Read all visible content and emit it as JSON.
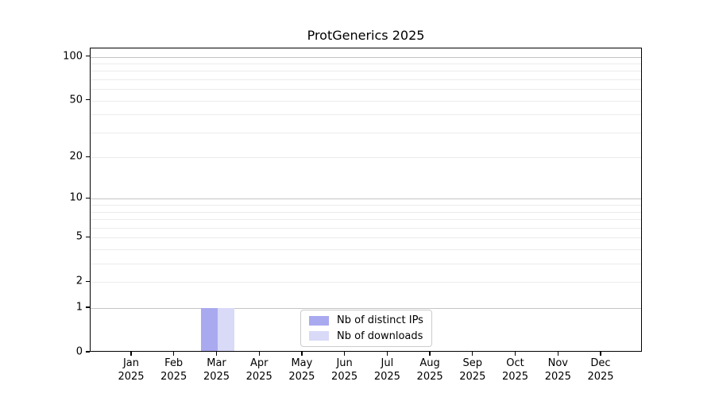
{
  "chart_data": {
    "type": "bar",
    "title": "ProtGenerics 2025",
    "categories": [
      "Jan 2025",
      "Feb 2025",
      "Mar 2025",
      "Apr 2025",
      "May 2025",
      "Jun 2025",
      "Jul 2025",
      "Aug 2025",
      "Sep 2025",
      "Oct 2025",
      "Nov 2025",
      "Dec 2025"
    ],
    "series": [
      {
        "name": "Nb of distinct IPs",
        "color": "#a9a9f0",
        "values": [
          0,
          0,
          1,
          0,
          0,
          0,
          0,
          0,
          0,
          0,
          0,
          0
        ]
      },
      {
        "name": "Nb of downloads",
        "color": "#d9d9f8",
        "values": [
          0,
          0,
          1,
          0,
          0,
          0,
          0,
          0,
          0,
          0,
          0,
          0
        ]
      }
    ],
    "xlabel": "",
    "ylabel": "",
    "yscale": "log1p",
    "ylim": [
      0,
      114
    ],
    "yticks": [
      0,
      1,
      2,
      5,
      10,
      20,
      50,
      100
    ],
    "ygrid_major": [
      1,
      10,
      100
    ],
    "ygrid_minor": [
      2,
      3,
      4,
      5,
      6,
      7,
      8,
      9,
      20,
      30,
      40,
      50,
      60,
      70,
      80,
      90
    ],
    "grid": true,
    "legend_position": "lower center inside",
    "colors": {
      "axis": "#000000",
      "grid_major": "#c4c4c4",
      "grid_minor": "#ebebeb",
      "legend_border": "#cccccc",
      "background": "#ffffff"
    }
  }
}
